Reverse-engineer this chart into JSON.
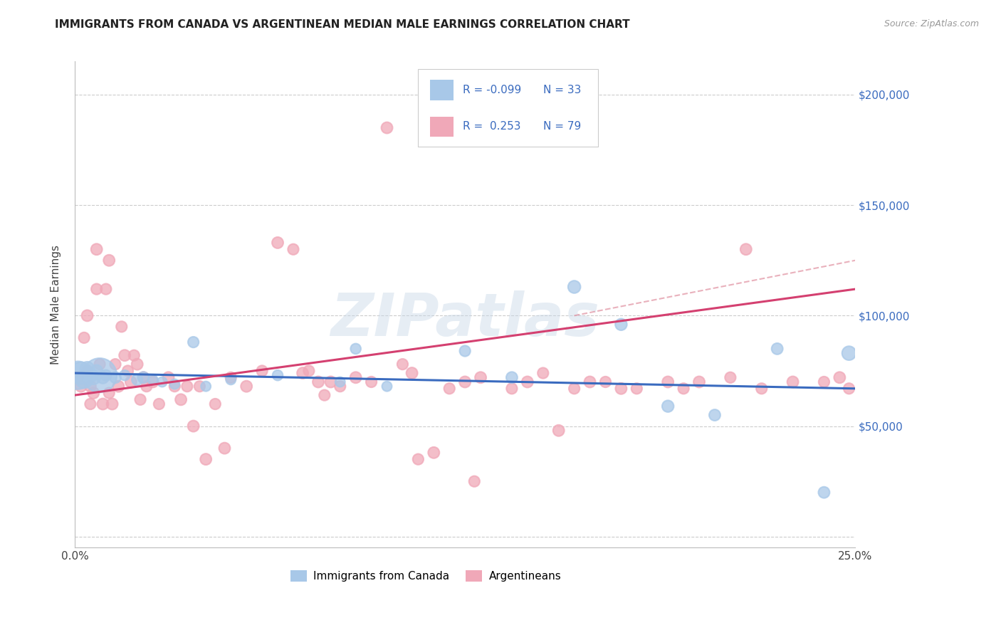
{
  "title": "IMMIGRANTS FROM CANADA VS ARGENTINEAN MEDIAN MALE EARNINGS CORRELATION CHART",
  "source": "Source: ZipAtlas.com",
  "ylabel": "Median Male Earnings",
  "y_ticks": [
    0,
    50000,
    100000,
    150000,
    200000
  ],
  "y_tick_right_labels": [
    "",
    "$50,000",
    "$100,000",
    "$150,000",
    "$200,000"
  ],
  "xlim": [
    0.0,
    0.25
  ],
  "ylim": [
    -5000,
    215000
  ],
  "legend_R_blue": "-0.099",
  "legend_N_blue": "33",
  "legend_R_pink": "0.253",
  "legend_N_pink": "79",
  "blue_color": "#a8c8e8",
  "pink_color": "#f0a8b8",
  "blue_line_color": "#3a6bbf",
  "pink_line_color": "#d44070",
  "watermark": "ZIPatlas",
  "blue_scatter_x": [
    0.001,
    0.002,
    0.003,
    0.004,
    0.005,
    0.006,
    0.007,
    0.008,
    0.009,
    0.01,
    0.013,
    0.016,
    0.02,
    0.022,
    0.025,
    0.028,
    0.032,
    0.038,
    0.042,
    0.05,
    0.065,
    0.085,
    0.09,
    0.1,
    0.125,
    0.14,
    0.16,
    0.175,
    0.19,
    0.205,
    0.225,
    0.24,
    0.248
  ],
  "blue_scatter_y": [
    73000,
    74000,
    71000,
    76000,
    73000,
    72000,
    75000,
    73000,
    72000,
    73000,
    72000,
    73000,
    71000,
    72000,
    71000,
    70000,
    69000,
    88000,
    68000,
    71000,
    73000,
    70000,
    85000,
    68000,
    84000,
    72000,
    113000,
    96000,
    59000,
    55000,
    85000,
    20000,
    83000
  ],
  "blue_scatter_size": [
    800,
    500,
    300,
    200,
    200,
    200,
    150,
    1200,
    150,
    120,
    130,
    110,
    120,
    130,
    100,
    100,
    100,
    120,
    100,
    100,
    110,
    100,
    110,
    100,
    120,
    130,
    160,
    140,
    140,
    130,
    130,
    130,
    200
  ],
  "pink_scatter_x": [
    0.001,
    0.002,
    0.003,
    0.004,
    0.004,
    0.005,
    0.005,
    0.006,
    0.007,
    0.007,
    0.008,
    0.009,
    0.01,
    0.011,
    0.011,
    0.012,
    0.013,
    0.014,
    0.015,
    0.016,
    0.017,
    0.018,
    0.019,
    0.02,
    0.021,
    0.022,
    0.023,
    0.025,
    0.027,
    0.03,
    0.032,
    0.034,
    0.036,
    0.038,
    0.04,
    0.042,
    0.045,
    0.048,
    0.05,
    0.055,
    0.06,
    0.065,
    0.07,
    0.073,
    0.075,
    0.078,
    0.08,
    0.082,
    0.085,
    0.09,
    0.095,
    0.1,
    0.105,
    0.108,
    0.11,
    0.115,
    0.12,
    0.125,
    0.128,
    0.13,
    0.14,
    0.145,
    0.15,
    0.155,
    0.16,
    0.165,
    0.17,
    0.175,
    0.18,
    0.19,
    0.195,
    0.2,
    0.21,
    0.215,
    0.22,
    0.23,
    0.24,
    0.245,
    0.248
  ],
  "pink_scatter_y": [
    72000,
    68000,
    90000,
    100000,
    75000,
    68000,
    60000,
    65000,
    112000,
    130000,
    78000,
    60000,
    112000,
    125000,
    65000,
    60000,
    78000,
    68000,
    95000,
    82000,
    75000,
    70000,
    82000,
    78000,
    62000,
    72000,
    68000,
    70000,
    60000,
    72000,
    68000,
    62000,
    68000,
    50000,
    68000,
    35000,
    60000,
    40000,
    72000,
    68000,
    75000,
    133000,
    130000,
    74000,
    75000,
    70000,
    64000,
    70000,
    68000,
    72000,
    70000,
    185000,
    78000,
    74000,
    35000,
    38000,
    67000,
    70000,
    25000,
    72000,
    67000,
    70000,
    74000,
    48000,
    67000,
    70000,
    70000,
    67000,
    67000,
    70000,
    67000,
    70000,
    72000,
    130000,
    67000,
    70000,
    70000,
    72000,
    67000
  ],
  "pink_scatter_size": [
    120,
    130,
    120,
    130,
    120,
    130,
    120,
    130,
    120,
    130,
    120,
    130,
    120,
    130,
    120,
    130,
    120,
    130,
    120,
    130,
    120,
    130,
    120,
    130,
    120,
    130,
    120,
    130,
    120,
    130,
    120,
    130,
    120,
    130,
    120,
    130,
    120,
    130,
    120,
    130,
    120,
    130,
    120,
    130,
    120,
    130,
    120,
    130,
    120,
    130,
    120,
    130,
    120,
    130,
    120,
    130,
    120,
    130,
    120,
    130,
    120,
    130,
    120,
    130,
    120,
    130,
    120,
    130,
    120,
    130,
    120,
    130,
    120,
    130,
    120,
    130,
    120,
    130,
    120
  ],
  "blue_line_x": [
    0.0,
    0.25
  ],
  "blue_line_y": [
    74000,
    67000
  ],
  "pink_line_x": [
    0.0,
    0.25
  ],
  "pink_line_y": [
    64000,
    112000
  ],
  "dashed_line_x": [
    0.16,
    0.25
  ],
  "dashed_line_y": [
    100000,
    125000
  ],
  "dashed_line_color": "#e090a0",
  "grid_color": "#cccccc",
  "axis_label_color": "#444444",
  "right_label_color": "#3a6bbf",
  "title_fontsize": 11,
  "source_fontsize": 9,
  "tick_fontsize": 11,
  "ylabel_fontsize": 11
}
